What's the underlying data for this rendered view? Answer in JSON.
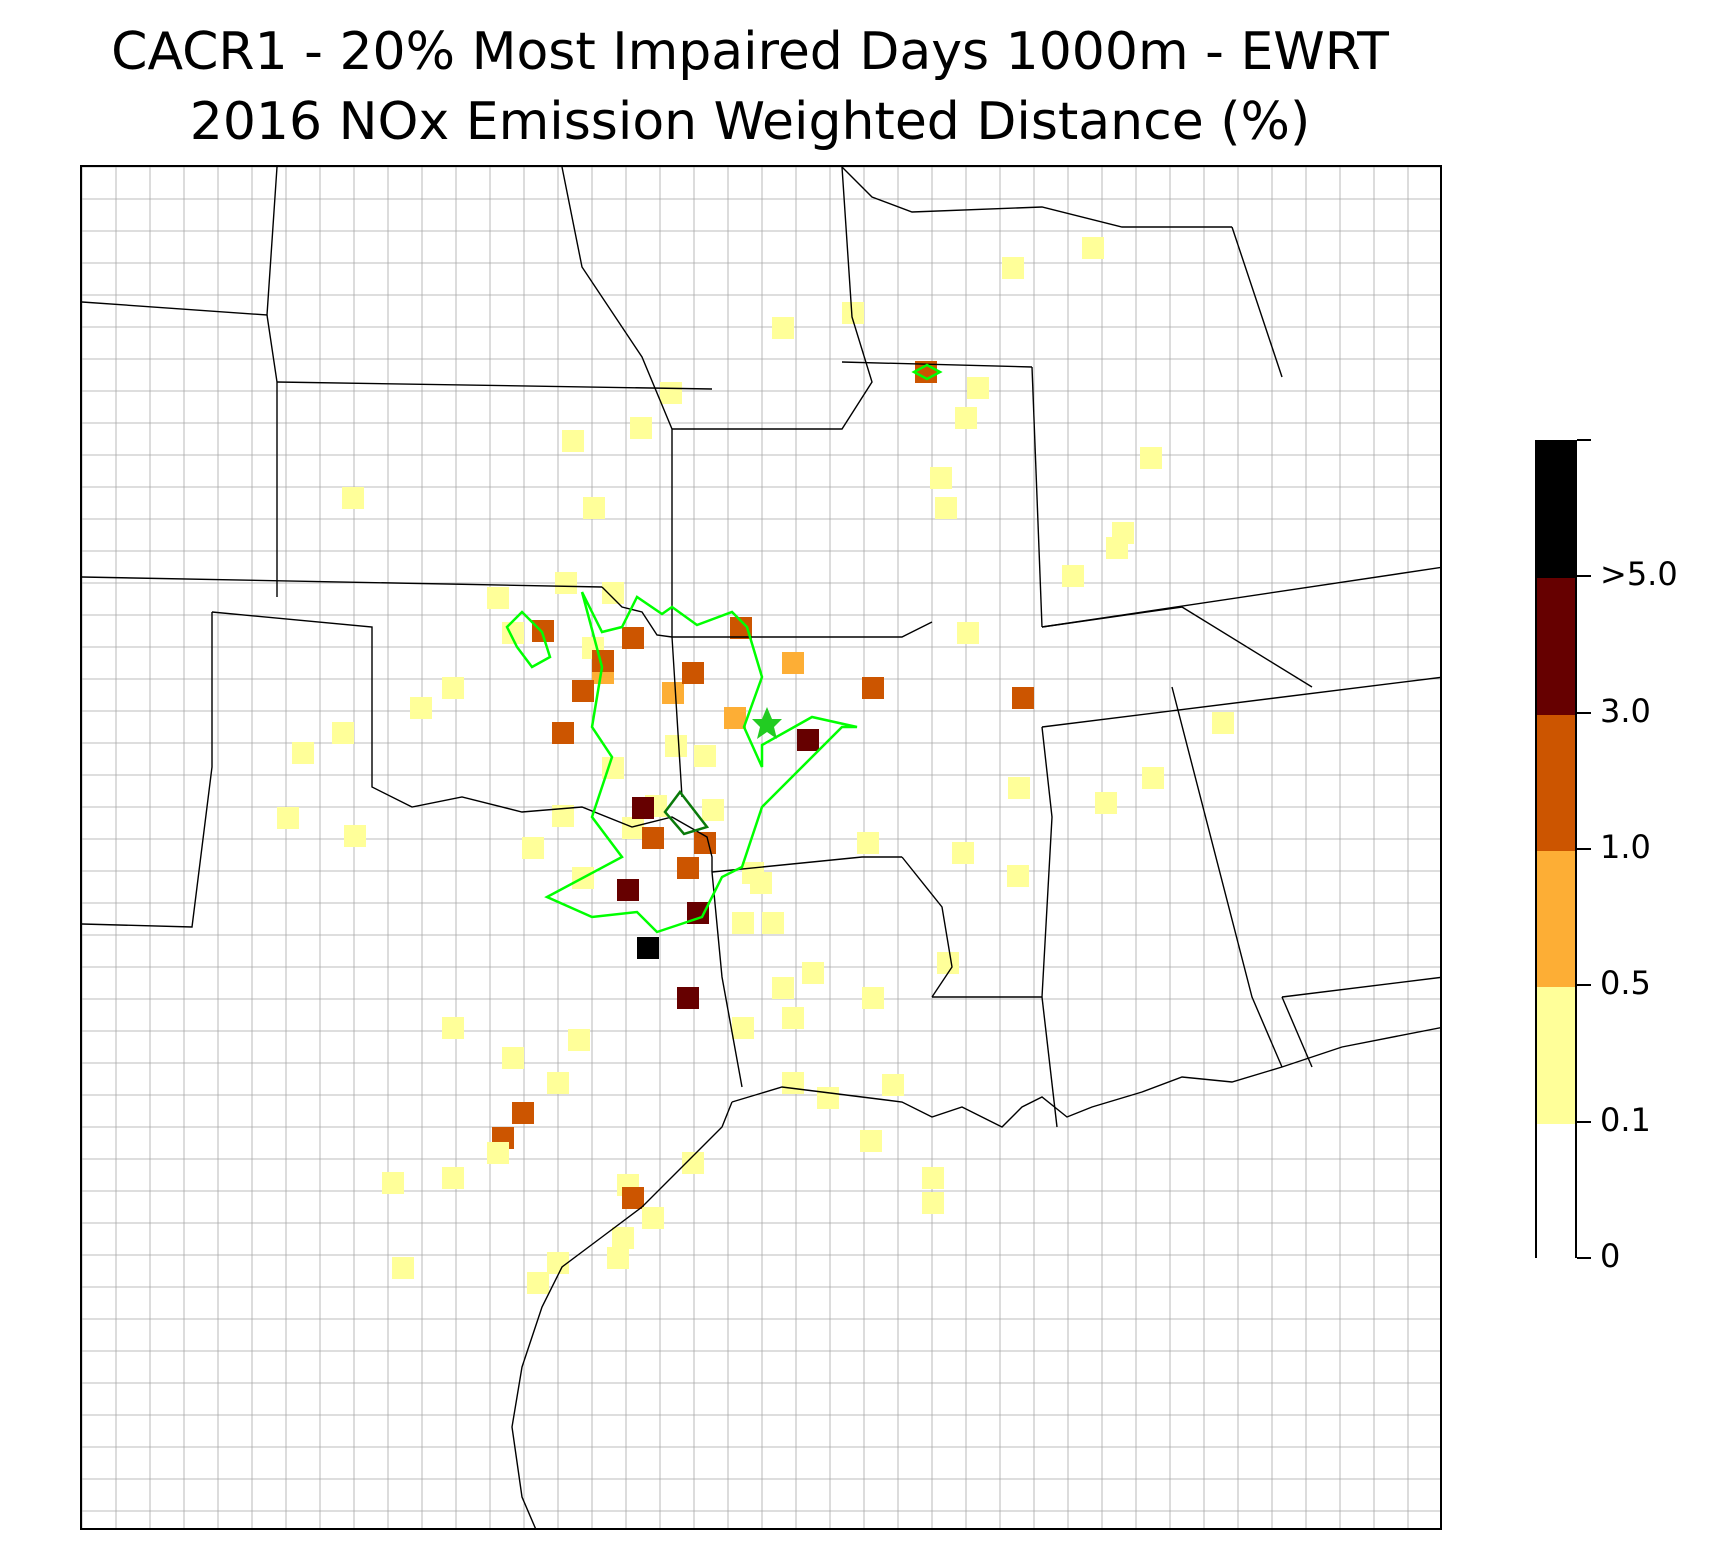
{
  "title": {
    "line1": "CACR1 - 20% Most Impaired Days 1000m - EWRT",
    "line2": "2016 NOx Emission Weighted Distance (%)"
  },
  "map": {
    "region": "South-central United States (county boundaries)",
    "receptor_marker_color": "#22cc22",
    "outer_contour_color": "#00ff00",
    "inner_contour_color": "#0a7a0a",
    "county_line_color": "#a8a8a8",
    "state_line_color": "#000000"
  },
  "colorbar": {
    "bins": [
      {
        "range": "0-0.1",
        "color": "#ffffff"
      },
      {
        "range": "0.1-0.5",
        "color": "#ffff99"
      },
      {
        "range": "0.5-1.0",
        "color": "#fdae35"
      },
      {
        "range": "1.0-3.0",
        "color": "#cc5500"
      },
      {
        "range": "3.0-5.0",
        "color": "#660000"
      },
      {
        "range": ">5.0",
        "color": "#000000"
      }
    ],
    "tick_labels": [
      "0",
      "0.1",
      "0.5",
      "1.0",
      "3.0",
      ">5.0"
    ]
  }
}
